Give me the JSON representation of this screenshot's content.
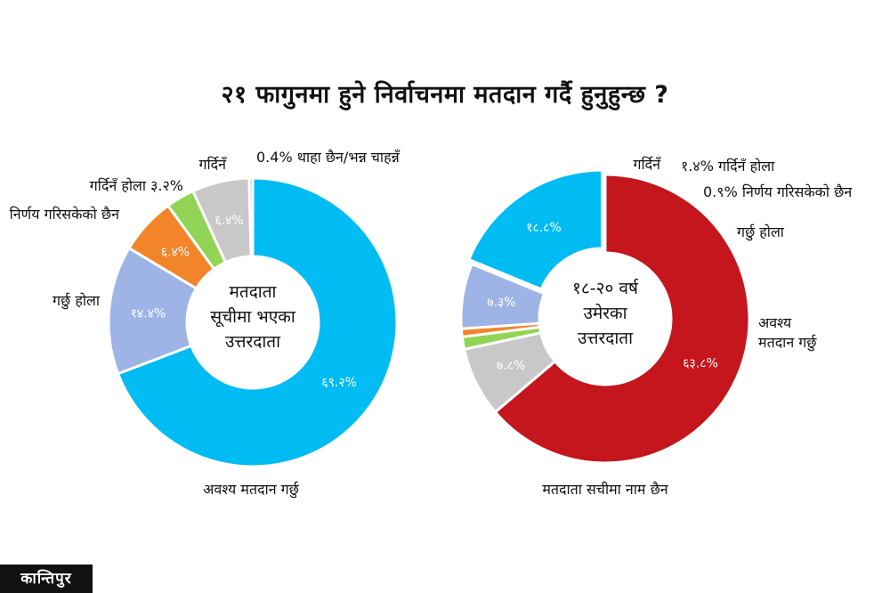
{
  "title": "२१ फागुनमा हुने निर्वाचनमा मतदान गर्दै हुनुहुन्छ ?",
  "logo": "कान्तिपुर",
  "chart_data": [
    {
      "type": "pie",
      "center_label": [
        "मतदाता",
        "सूचीमा भएका",
        "उत्तरदाता"
      ],
      "slices": [
        {
          "label": "अवश्य मतदान गर्छु",
          "value": 69.2,
          "value_label": "६९.२%",
          "color": "#00bcf2"
        },
        {
          "label": "गर्छु होला",
          "value": 14.4,
          "value_label": "१४.४%",
          "color": "#9eb4e6"
        },
        {
          "label": "निर्णय गरिसकेको छैन",
          "value": 6.4,
          "value_label": "६.४%",
          "color": "#f2852a"
        },
        {
          "label": "गर्दिनँ होला ३.२%",
          "value": 3.2,
          "value_label": "",
          "color": "#92d456"
        },
        {
          "label": "गर्दिनँ",
          "value": 6.4,
          "value_label": "६.४%",
          "color": "#c8c8c8"
        },
        {
          "label": "0.4% थाहा छैन/भन्न चाहन्नँ",
          "value": 0.4,
          "value_label": "",
          "color": "#c8c8c8"
        }
      ]
    },
    {
      "type": "pie",
      "center_label": [
        "१८-२० वर्ष",
        "उमेरका",
        "उत्तरदाता"
      ],
      "slices": [
        {
          "label": "मतदाता सचीमा नाम छैन",
          "value": 63.8,
          "value_label": "६३.८%",
          "color": "#c4161c"
        },
        {
          "label": "गर्दिनँ",
          "value": 7.8,
          "value_label": "७.८%",
          "color": "#c8c8c8"
        },
        {
          "label": "१.४% गर्दिनँ होला",
          "value": 1.4,
          "value_label": "",
          "color": "#92d456"
        },
        {
          "label": "0.९% निर्णय गरिसकेको छैन",
          "value": 0.9,
          "value_label": "",
          "color": "#f2852a"
        },
        {
          "label": "गर्छु होला",
          "value": 7.3,
          "value_label": "७.३%",
          "color": "#9eb4e6"
        },
        {
          "label": "अवश्य मतदान गर्छु",
          "value": 18.8,
          "value_label": "१८.८%",
          "color": "#00bcf2"
        }
      ]
    }
  ]
}
